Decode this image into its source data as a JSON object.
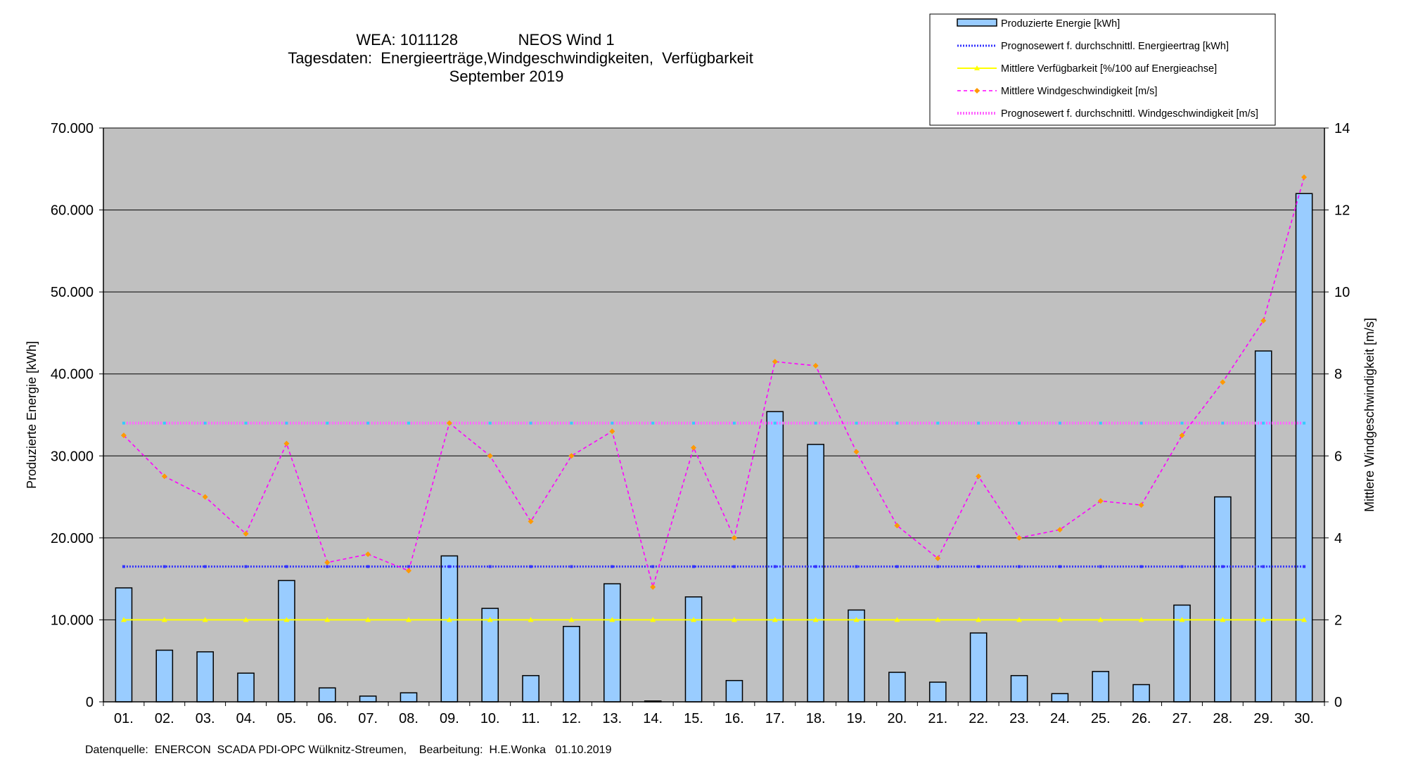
{
  "title_lines": [
    "WEA: 1011128              NEOS Wind 1",
    "Tagesdaten:  Energieerträge,Windgeschwindigkeiten,  Verfügbarkeit",
    "September 2019"
  ],
  "footer": "Datenquelle:  ENERCON  SCADA PDI-OPC Wülknitz-Streumen,    Bearbeitung:  H.E.Wonka   01.10.2019",
  "colors": {
    "plot_bg": "#c0c0c0",
    "bar_fill": "#99ccff",
    "bar_stroke": "#000000",
    "wind_line": "#ff00ff",
    "wind_marker": "#ff9900",
    "energy_forecast": "#3333ff",
    "availability": "#ffff00",
    "wind_forecast": "#ff66ff",
    "wind_forecast_marker": "#33ccff"
  },
  "chart_data": {
    "type": "bar",
    "categories": [
      "01.",
      "02.",
      "03.",
      "04.",
      "05.",
      "06.",
      "07.",
      "08.",
      "09.",
      "10.",
      "11.",
      "12.",
      "13.",
      "14.",
      "15.",
      "16.",
      "17.",
      "18.",
      "19.",
      "20.",
      "21.",
      "22.",
      "23.",
      "24.",
      "25.",
      "26.",
      "27.",
      "28.",
      "29.",
      "30."
    ],
    "ylabel": "Produzierte Energie [kWh]",
    "y2label": "Mittlere Windgeschwindigkeit [m/s]",
    "ylim": [
      0,
      70000
    ],
    "y2lim": [
      0,
      14
    ],
    "yticks": [
      "0",
      "10.000",
      "20.000",
      "30.000",
      "40.000",
      "50.000",
      "60.000",
      "70.000"
    ],
    "y2ticks": [
      "0",
      "2",
      "4",
      "6",
      "8",
      "10",
      "12",
      "14"
    ],
    "grid": true,
    "legend_position": "top-right",
    "legend": [
      "Produzierte Energie [kWh]",
      "Prognosewert f. durchschnittl. Energieertrag  [kWh]",
      "Mittlere Verfügbarkeit [%/100 auf Energieachse]",
      "Mittlere Windgeschwindigkeit [m/s]",
      "Prognosewert f. durchschnittl. Windgeschwindigkeit [m/s]"
    ],
    "series": [
      {
        "name": "Produzierte Energie [kWh]",
        "type": "bar",
        "axis": "left",
        "values": [
          13900,
          6300,
          6100,
          3500,
          14800,
          1700,
          700,
          1100,
          17800,
          11400,
          3200,
          9200,
          14400,
          100,
          12800,
          2600,
          35400,
          31400,
          11200,
          3600,
          2400,
          8400,
          3200,
          1000,
          3700,
          2100,
          11800,
          25000,
          42800,
          62000
        ]
      },
      {
        "name": "Prognosewert f. durchschnittl. Energieertrag  [kWh]",
        "type": "line",
        "axis": "left",
        "values": [
          16500,
          16500,
          16500,
          16500,
          16500,
          16500,
          16500,
          16500,
          16500,
          16500,
          16500,
          16500,
          16500,
          16500,
          16500,
          16500,
          16500,
          16500,
          16500,
          16500,
          16500,
          16500,
          16500,
          16500,
          16500,
          16500,
          16500,
          16500,
          16500,
          16500
        ]
      },
      {
        "name": "Mittlere Verfügbarkeit [%/100 auf Energieachse]",
        "type": "line",
        "axis": "left",
        "values": [
          10000,
          10000,
          10000,
          10000,
          10000,
          10000,
          10000,
          10000,
          10000,
          10000,
          10000,
          10000,
          10000,
          10000,
          10000,
          10000,
          10000,
          10000,
          10000,
          10000,
          10000,
          10000,
          10000,
          10000,
          10000,
          10000,
          10000,
          10000,
          10000,
          10000
        ]
      },
      {
        "name": "Mittlere Windgeschwindigkeit [m/s]",
        "type": "line",
        "axis": "right",
        "values": [
          6.5,
          5.5,
          5.0,
          4.1,
          6.3,
          3.4,
          3.6,
          3.2,
          6.8,
          6.0,
          4.4,
          6.0,
          6.6,
          2.8,
          6.2,
          4.0,
          8.3,
          8.2,
          6.1,
          4.3,
          3.5,
          5.5,
          4.0,
          4.2,
          4.9,
          4.8,
          6.5,
          7.8,
          9.3,
          12.8
        ]
      },
      {
        "name": "Prognosewert f. durchschnittl. Windgeschwindigkeit [m/s]",
        "type": "line",
        "axis": "right",
        "values": [
          6.8,
          6.8,
          6.8,
          6.8,
          6.8,
          6.8,
          6.8,
          6.8,
          6.8,
          6.8,
          6.8,
          6.8,
          6.8,
          6.8,
          6.8,
          6.8,
          6.8,
          6.8,
          6.8,
          6.8,
          6.8,
          6.8,
          6.8,
          6.8,
          6.8,
          6.8,
          6.8,
          6.8,
          6.8,
          6.8
        ]
      }
    ]
  }
}
